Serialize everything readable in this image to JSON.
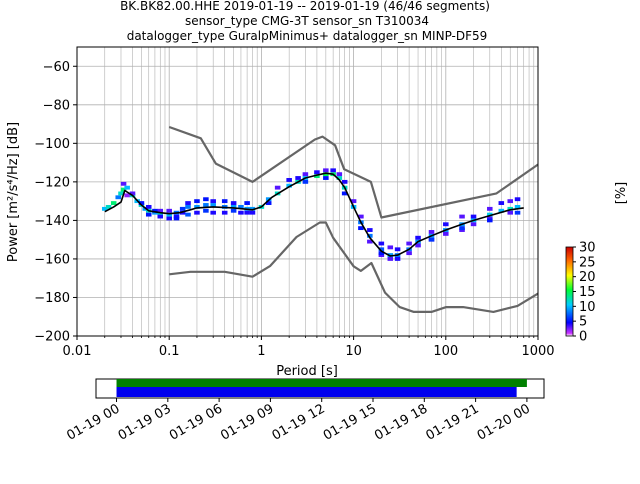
{
  "header": {
    "line1": "BK.BK82.00.HHE   2019-01-19 -- 2019-01-19  (46/46 segments)",
    "line2": "sensor_type CMG-3T sensor_sn T310034",
    "line3": "datalogger_type GuralpMinimus+ datalogger_sn MINP-DF59"
  },
  "colors": {
    "model_line": "#666666",
    "mean_line": "#000000",
    "mode_line": "#000000",
    "timeline_green": "#008000",
    "timeline_blue": "#0000ee"
  },
  "chart_data": [
    {
      "type": "heatmap",
      "name": "ppsd",
      "xlabel": "Period [s]",
      "ylabel": "Power [m²/s⁴/Hz] [dB]",
      "xscale": "log",
      "xlim": [
        0.01,
        1000
      ],
      "ylim": [
        -200,
        -50
      ],
      "xticks": [
        0.01,
        0.1,
        1,
        10,
        100,
        1000
      ],
      "xticklabels": [
        "0.01",
        "0.1",
        "1",
        "10",
        "100",
        "1000"
      ],
      "yticks": [
        -200,
        -180,
        -160,
        -140,
        -120,
        -100,
        -80,
        -60
      ],
      "grid": true,
      "colorbar": {
        "label": "[%]",
        "range": [
          0,
          30
        ],
        "ticks": [
          0,
          5,
          10,
          15,
          20,
          25,
          30
        ]
      },
      "nlnm": {
        "x": [
          0.1,
          0.17,
          0.4,
          0.8,
          1.24,
          2.4,
          4.3,
          5.0,
          6.0,
          10.0,
          12.0,
          15.6,
          21.9,
          31.6,
          45.0,
          70.0,
          101.0,
          154.0,
          328.0,
          600.0,
          1000.0
        ],
        "y": [
          -168.0,
          -166.7,
          -166.7,
          -169.2,
          -163.7,
          -148.6,
          -141.1,
          -141.1,
          -149.0,
          -163.8,
          -166.2,
          -162.1,
          -177.5,
          -185.0,
          -187.5,
          -187.5,
          -185.0,
          -185.0,
          -187.5,
          -184.4,
          -178.0
        ]
      },
      "nhnm": {
        "x": [
          0.1,
          0.22,
          0.32,
          0.8,
          3.8,
          4.6,
          6.3,
          7.9,
          15.4,
          20.0,
          354.8,
          1000.0
        ],
        "y": [
          -91.5,
          -97.4,
          -110.5,
          -120.0,
          -98.0,
          -96.5,
          -101.0,
          -113.5,
          -120.0,
          -138.5,
          -126.0,
          -111.0
        ]
      },
      "mean": {
        "x": [
          0.02,
          0.025,
          0.03,
          0.033,
          0.04,
          0.05,
          0.06,
          0.08,
          0.1,
          0.13,
          0.17,
          0.2,
          0.3,
          0.5,
          0.8,
          1.0,
          1.3,
          2.0,
          3.0,
          4.0,
          5.0,
          6.0,
          7.0,
          8.0,
          10.0,
          12.0,
          15.0,
          20.0,
          25.0,
          30.0,
          40.0,
          50.0,
          70.0,
          100.0,
          150.0,
          200.0,
          300.0,
          500.0,
          700.0
        ],
        "y": [
          -135.5,
          -133.0,
          -130.5,
          -124.5,
          -127.0,
          -132.0,
          -135.0,
          -136.0,
          -136.5,
          -136.0,
          -134.5,
          -133.5,
          -133.0,
          -133.5,
          -134.5,
          -133.0,
          -128.0,
          -122.5,
          -118.0,
          -116.5,
          -115.5,
          -116.0,
          -119.0,
          -123.0,
          -133.0,
          -141.0,
          -149.0,
          -156.0,
          -158.5,
          -158.0,
          -155.0,
          -151.0,
          -148.0,
          -145.0,
          -142.0,
          -140.0,
          -137.5,
          -134.5,
          -133.5
        ]
      },
      "cells": [
        [
          0.02,
          -134,
          10
        ],
        [
          0.022,
          -133,
          12
        ],
        [
          0.025,
          -131,
          14
        ],
        [
          0.028,
          -128,
          8
        ],
        [
          0.03,
          -126,
          12
        ],
        [
          0.032,
          -124,
          14
        ],
        [
          0.032,
          -121,
          3
        ],
        [
          0.035,
          -123,
          10
        ],
        [
          0.035,
          -127,
          2
        ],
        [
          0.04,
          -127,
          12
        ],
        [
          0.045,
          -130,
          10
        ],
        [
          0.05,
          -132,
          12
        ],
        [
          0.055,
          -134,
          9
        ],
        [
          0.06,
          -135,
          12
        ],
        [
          0.07,
          -136,
          9
        ],
        [
          0.08,
          -137,
          12
        ],
        [
          0.1,
          -137,
          10
        ],
        [
          0.12,
          -136,
          8
        ],
        [
          0.14,
          -134,
          6
        ],
        [
          0.16,
          -133,
          8
        ],
        [
          0.2,
          -133,
          9
        ],
        [
          0.25,
          -132,
          8
        ],
        [
          0.3,
          -132,
          9
        ],
        [
          0.4,
          -133,
          8
        ],
        [
          0.5,
          -133,
          9
        ],
        [
          0.6,
          -133,
          8
        ],
        [
          0.7,
          -134,
          9
        ],
        [
          0.8,
          -134,
          9
        ],
        [
          1.0,
          -133,
          12
        ],
        [
          1.2,
          -129,
          9
        ],
        [
          1.5,
          -126,
          12
        ],
        [
          2.0,
          -122,
          10
        ],
        [
          2.5,
          -120,
          12
        ],
        [
          3.0,
          -118,
          10
        ],
        [
          4.0,
          -117,
          14
        ],
        [
          5.0,
          -116,
          15
        ],
        [
          6.0,
          -116,
          14
        ],
        [
          7.0,
          -118,
          12
        ],
        [
          8.0,
          -123,
          12
        ],
        [
          10.0,
          -133,
          10
        ],
        [
          12.0,
          -141,
          8
        ],
        [
          15.0,
          -148,
          8
        ],
        [
          20.0,
          -155,
          7
        ],
        [
          25.0,
          -158,
          9
        ],
        [
          30.0,
          -158,
          8
        ],
        [
          40.0,
          -155,
          8
        ],
        [
          50.0,
          -151,
          9
        ],
        [
          70.0,
          -148,
          9
        ],
        [
          100.0,
          -145,
          9
        ],
        [
          150.0,
          -142,
          9
        ],
        [
          200.0,
          -140,
          10
        ],
        [
          300.0,
          -137,
          11
        ],
        [
          400.0,
          -135,
          10
        ],
        [
          500.0,
          -134,
          12
        ],
        [
          600.0,
          -133,
          10
        ],
        [
          0.04,
          -126,
          3
        ],
        [
          0.05,
          -131,
          5
        ],
        [
          0.06,
          -133,
          4
        ],
        [
          0.07,
          -135,
          5
        ],
        [
          0.08,
          -135,
          3
        ],
        [
          0.1,
          -135,
          3
        ],
        [
          0.1,
          -139,
          4
        ],
        [
          0.12,
          -138,
          4
        ],
        [
          0.14,
          -136,
          4
        ],
        [
          0.16,
          -131,
          4
        ],
        [
          0.2,
          -130,
          5
        ],
        [
          0.25,
          -129,
          5
        ],
        [
          0.3,
          -130,
          4
        ],
        [
          0.4,
          -130,
          5
        ],
        [
          0.5,
          -131,
          4
        ],
        [
          0.6,
          -136,
          4
        ],
        [
          0.7,
          -136,
          4
        ],
        [
          0.8,
          -136,
          4
        ],
        [
          0.2,
          -136,
          4
        ],
        [
          0.3,
          -136,
          4
        ],
        [
          0.4,
          -136,
          4
        ],
        [
          1.5,
          -123,
          3
        ],
        [
          2.0,
          -119,
          4
        ],
        [
          2.5,
          -118,
          4
        ],
        [
          3.0,
          -116,
          3
        ],
        [
          4.0,
          -115,
          4
        ],
        [
          5.0,
          -114,
          3
        ],
        [
          6.0,
          -114,
          4
        ],
        [
          7.0,
          -116,
          3
        ],
        [
          8.0,
          -120,
          4
        ],
        [
          10.0,
          -130,
          3
        ],
        [
          12.0,
          -138,
          3
        ],
        [
          15.0,
          -145,
          4
        ],
        [
          20.0,
          -152,
          4
        ],
        [
          25.0,
          -154,
          3
        ],
        [
          30.0,
          -155,
          4
        ],
        [
          40.0,
          -152,
          3
        ],
        [
          50.0,
          -149,
          4
        ],
        [
          70.0,
          -146,
          3
        ],
        [
          100.0,
          -142,
          4
        ],
        [
          150.0,
          -138,
          3
        ],
        [
          200.0,
          -138,
          4
        ],
        [
          300.0,
          -134,
          3
        ],
        [
          400.0,
          -131,
          4
        ],
        [
          500.0,
          -130,
          3
        ],
        [
          600.0,
          -129,
          4
        ],
        [
          15.0,
          -151,
          3
        ],
        [
          20.0,
          -158,
          3
        ],
        [
          25.0,
          -160,
          3
        ],
        [
          30.0,
          -160,
          4
        ],
        [
          40.0,
          -157,
          3
        ],
        [
          50.0,
          -153,
          3
        ],
        [
          70.0,
          -150,
          3
        ],
        [
          100.0,
          -147,
          3
        ],
        [
          150.0,
          -145,
          3
        ],
        [
          200.0,
          -142,
          3
        ],
        [
          300.0,
          -139,
          3
        ],
        [
          500.0,
          -136,
          3
        ],
        [
          0.06,
          -137,
          5
        ],
        [
          0.08,
          -138,
          4
        ],
        [
          0.12,
          -139,
          5
        ],
        [
          0.16,
          -137,
          7
        ],
        [
          0.25,
          -135,
          6
        ],
        [
          0.5,
          -135,
          6
        ],
        [
          0.7,
          -131,
          5
        ],
        [
          1.2,
          -131,
          5
        ],
        [
          3.0,
          -120,
          6
        ],
        [
          5.0,
          -118,
          5
        ],
        [
          8.0,
          -126,
          5
        ],
        [
          12.0,
          -144,
          5
        ],
        [
          20.0,
          -157,
          5
        ],
        [
          70.0,
          -150,
          6
        ],
        [
          150.0,
          -144,
          6
        ],
        [
          300.0,
          -140,
          5
        ],
        [
          600.0,
          -136,
          6
        ]
      ]
    },
    {
      "type": "bar",
      "name": "timeline",
      "xticklabels": [
        "01-19 00",
        "01-19 03",
        "01-19 06",
        "01-19 09",
        "01-19 12",
        "01-19 15",
        "01-19 18",
        "01-19 21",
        "01-20 00"
      ],
      "x_range_hours": [
        -1.2,
        25.0
      ],
      "bars": [
        {
          "color": "#008000",
          "start_hour": 0.0,
          "end_hour": 24.0
        },
        {
          "color": "#0000ee",
          "start_hour": 0.0,
          "end_hour": 23.4
        }
      ]
    }
  ]
}
